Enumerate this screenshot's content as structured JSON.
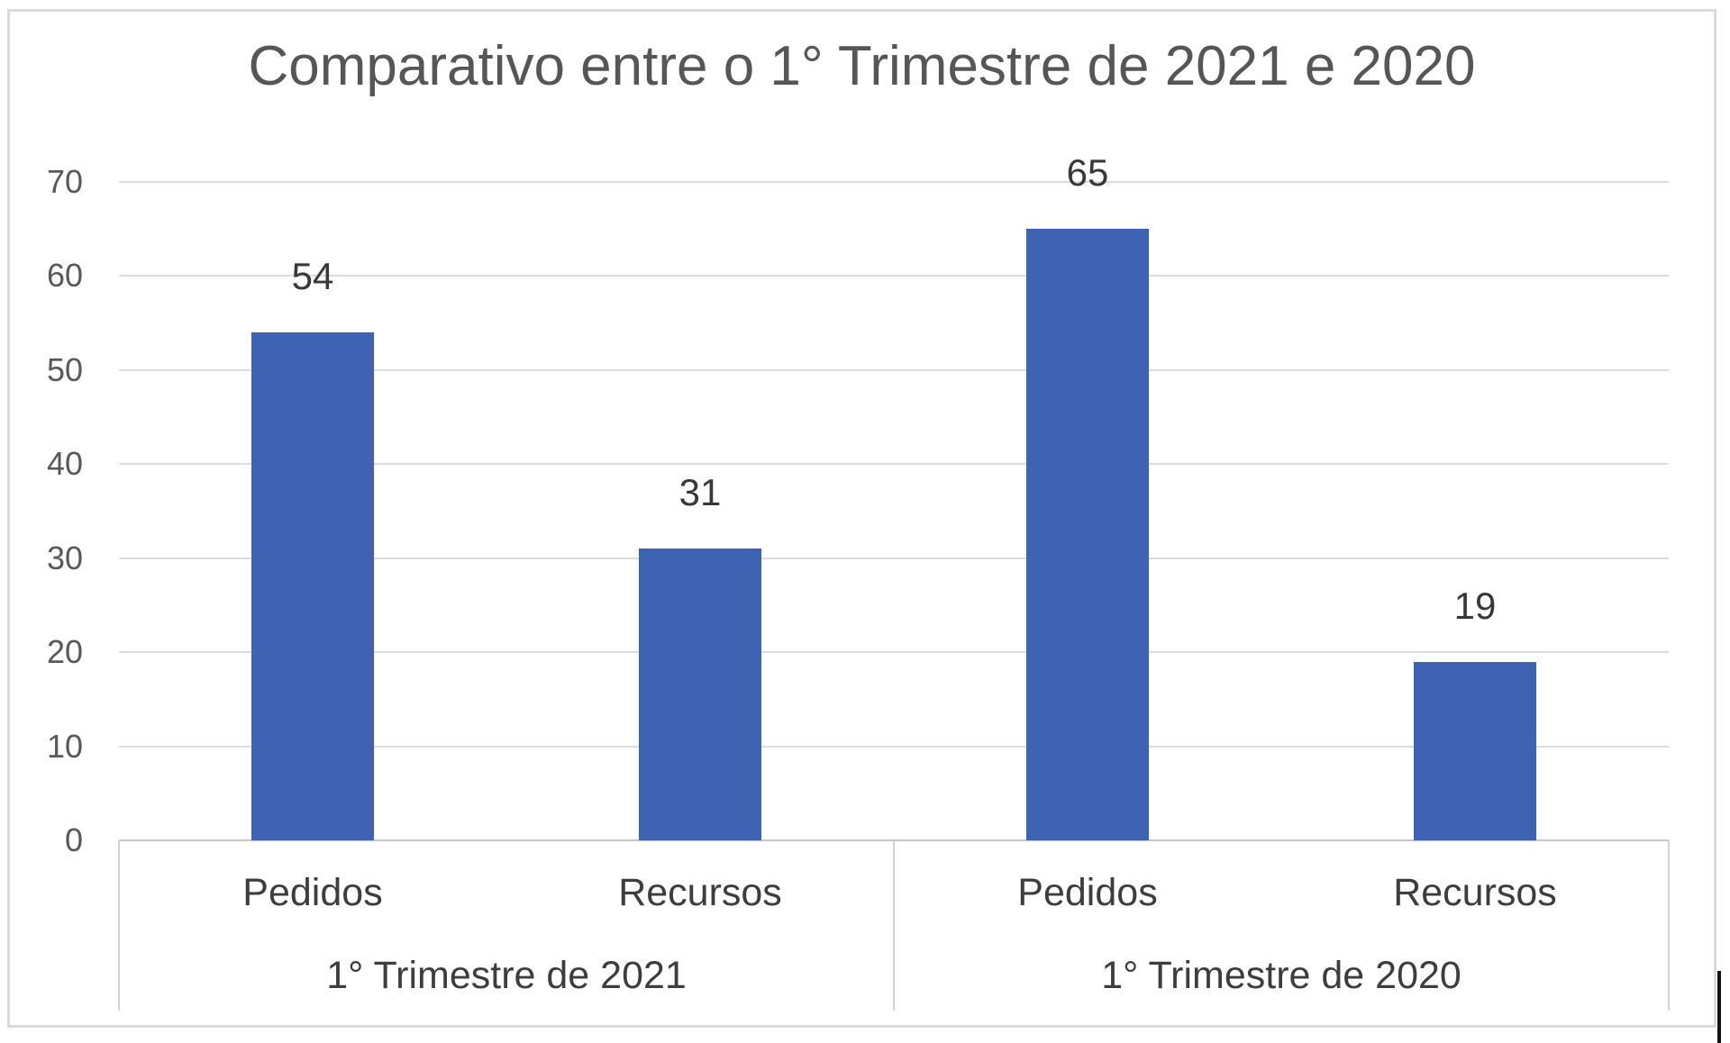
{
  "chart": {
    "background": "#ffffff",
    "frame_border_color": "#dadada"
  },
  "chart_data": {
    "type": "bar",
    "title": "Comparativo entre o 1° Trimestre de 2021 e 2020",
    "groups": [
      {
        "label": "1° Trimestre de 2021",
        "categories": [
          "Pedidos",
          "Recursos"
        ],
        "values": [
          54,
          31
        ]
      },
      {
        "label": "1° Trimestre de 2020",
        "categories": [
          "Pedidos",
          "Recursos"
        ],
        "values": [
          65,
          19
        ]
      }
    ],
    "categories": [
      "Pedidos",
      "Recursos",
      "Pedidos",
      "Recursos"
    ],
    "values": [
      54,
      31,
      65,
      19
    ],
    "data_labels": [
      54,
      31,
      65,
      19
    ],
    "yticks": [
      0,
      10,
      20,
      30,
      40,
      50,
      60,
      70
    ],
    "ylim": [
      0,
      70
    ],
    "xlabel": "",
    "ylabel": "",
    "grid": true,
    "legend": "none",
    "bar_color": "#3e63b2",
    "gridline_color": "#dcdcdc",
    "axis_text_color": "#595959",
    "label_text_color": "#3d3d3d",
    "title_color": "#565656"
  },
  "artifacts": {
    "caret_color": "#111111"
  }
}
